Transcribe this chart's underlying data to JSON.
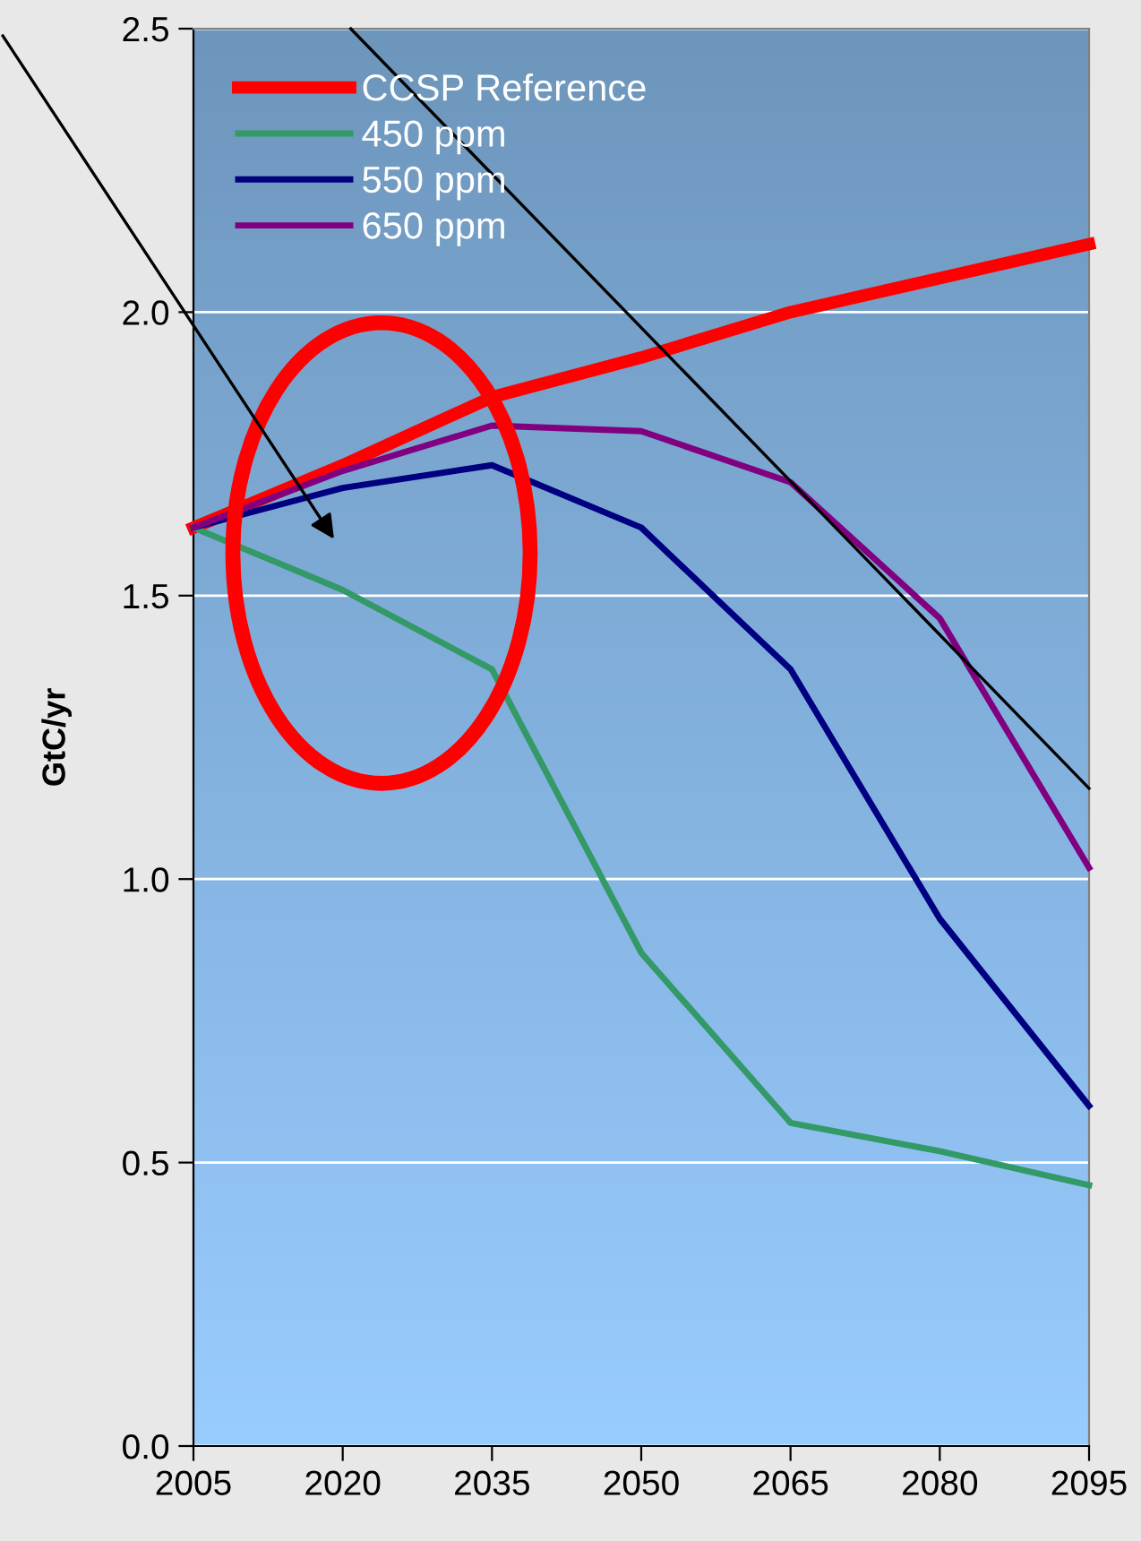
{
  "chart_data": {
    "type": "line",
    "ylabel": "GtC/yr",
    "x": [
      2005,
      2020,
      2035,
      2050,
      2065,
      2080,
      2095
    ],
    "series": [
      {
        "name": "CCSP Reference",
        "color": "#ff0000",
        "values": [
          1.62,
          1.73,
          1.85,
          1.92,
          2.0,
          2.06,
          2.12
        ]
      },
      {
        "name": "450 ppm",
        "color": "#339966",
        "values": [
          1.62,
          1.51,
          1.37,
          0.87,
          0.57,
          0.52,
          0.46
        ]
      },
      {
        "name": "550 ppm",
        "color": "#000080",
        "values": [
          1.62,
          1.69,
          1.73,
          1.62,
          1.37,
          0.93,
          0.6
        ]
      },
      {
        "name": "650 ppm",
        "color": "#800080",
        "values": [
          1.62,
          1.72,
          1.8,
          1.79,
          1.7,
          1.46,
          1.02
        ]
      },
      {
        "type": "line",
        "color": "#000000",
        "x": [
          2020.8,
          2095
        ],
        "values": [
          2.5,
          1.16
        ]
      }
    ],
    "xlim": [
      2005,
      2095
    ],
    "xticks": [
      2005,
      2020,
      2035,
      2050,
      2065,
      2080,
      2095
    ],
    "ylim": [
      0,
      2.5
    ],
    "yticks": [
      {
        "value": 0,
        "label": "0.0"
      },
      {
        "value": 0.5,
        "label": "0.5"
      },
      {
        "value": 1,
        "label": "1.0"
      },
      {
        "value": 1.5,
        "label": "1.5"
      },
      {
        "value": 2,
        "label": "2.0"
      },
      {
        "value": 2.5,
        "label": "2.5"
      }
    ],
    "grid": "y",
    "legend": "top left",
    "marker": "none",
    "line_style": "solid"
  }
}
